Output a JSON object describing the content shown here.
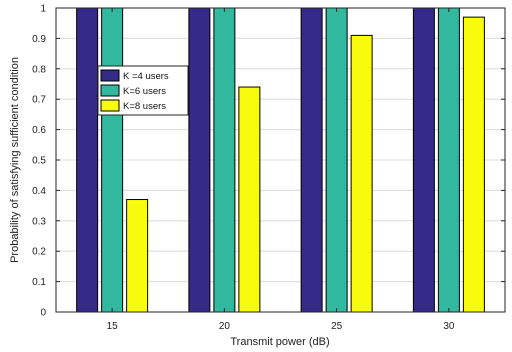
{
  "chart_data": {
    "type": "bar",
    "categories": [
      "15",
      "20",
      "25",
      "30"
    ],
    "series": [
      {
        "name": "K =4 users",
        "color": "#352a87",
        "values": [
          1.0,
          1.0,
          1.0,
          1.0
        ]
      },
      {
        "name": "K=6 users",
        "color": "#33b8a0",
        "values": [
          1.0,
          1.0,
          1.0,
          1.0
        ]
      },
      {
        "name": "K=8 users",
        "color": "#f9fb0e",
        "values": [
          0.37,
          0.74,
          0.91,
          0.97
        ]
      }
    ],
    "xlabel": "Transmit power (dB)",
    "ylabel": "Probability of satisfying sufficient condition",
    "ylim": [
      0,
      1
    ],
    "yticks": [
      "0",
      "0.1",
      "0.2",
      "0.3",
      "0.4",
      "0.5",
      "0.6",
      "0.7",
      "0.8",
      "0.9",
      "1"
    ],
    "grid": true,
    "legend_position": "upper-left"
  }
}
